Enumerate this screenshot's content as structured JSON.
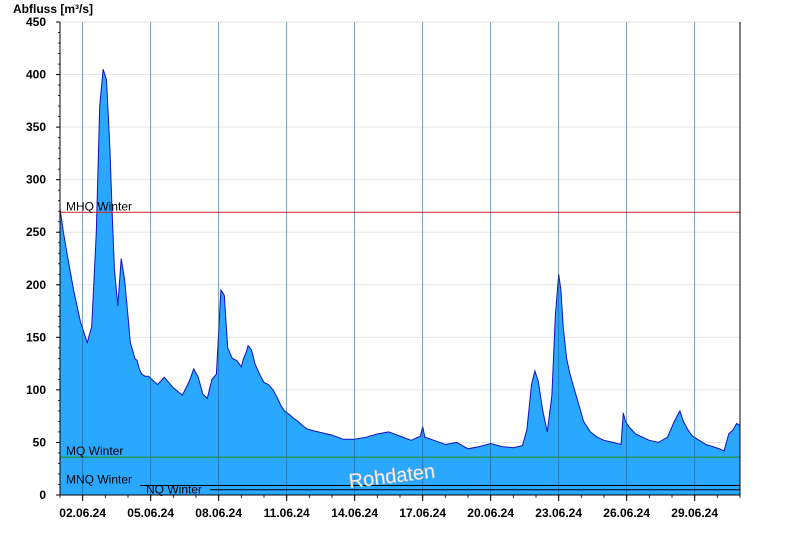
{
  "chart_data": {
    "type": "area",
    "title": "",
    "ylabel": "Abfluss [m³/s]",
    "xlabel": "",
    "ylim": [
      0,
      450
    ],
    "yticks": [
      0,
      50,
      100,
      150,
      200,
      250,
      300,
      350,
      400,
      450
    ],
    "xlim_days": [
      1,
      31
    ],
    "xticks": [
      {
        "day": 2,
        "label": "02.06.24"
      },
      {
        "day": 5,
        "label": "05.06.24"
      },
      {
        "day": 8,
        "label": "08.06.24"
      },
      {
        "day": 11,
        "label": "11.06.24"
      },
      {
        "day": 14,
        "label": "14.06.24"
      },
      {
        "day": 17,
        "label": "17.06.24"
      },
      {
        "day": 20,
        "label": "20.06.24"
      },
      {
        "day": 23,
        "label": "23.06.24"
      },
      {
        "day": 26,
        "label": "26.06.24"
      },
      {
        "day": 29,
        "label": "29.06.24"
      }
    ],
    "grid": true,
    "reference_lines": [
      {
        "name": "MHQ Winter",
        "value": 269,
        "color": "#d42020"
      },
      {
        "name": "MQ Winter",
        "value": 36,
        "color": "#1a8a1a"
      },
      {
        "name": "MNQ Winter",
        "value": 9,
        "color": "#000000"
      },
      {
        "name": "NQ Winter",
        "value": 5,
        "color": "#000000"
      }
    ],
    "watermark": "Rohdaten",
    "series": [
      {
        "fill": "#2aa8ff",
        "line": "#1010c0",
        "x": [
          1.0,
          1.15,
          1.35,
          1.6,
          1.9,
          2.2,
          2.4,
          2.6,
          2.75,
          2.9,
          3.05,
          3.2,
          3.3,
          3.4,
          3.55,
          3.7,
          3.85,
          4.0,
          4.1,
          4.2,
          4.3,
          4.4,
          4.5,
          4.6,
          4.75,
          4.9,
          5.05,
          5.3,
          5.6,
          6.0,
          6.4,
          6.7,
          6.9,
          7.1,
          7.3,
          7.5,
          7.7,
          7.9,
          8.1,
          8.25,
          8.4,
          8.6,
          8.8,
          9.0,
          9.1,
          9.2,
          9.3,
          9.45,
          9.6,
          9.8,
          10.0,
          10.2,
          10.4,
          10.6,
          10.75,
          10.9,
          11.1,
          11.3,
          11.5,
          11.7,
          11.9,
          12.2,
          12.6,
          13.0,
          13.5,
          14.0,
          14.5,
          15.0,
          15.5,
          16.0,
          16.5,
          16.9,
          17.0,
          17.1,
          17.5,
          18.0,
          18.5,
          19.0,
          19.5,
          20.0,
          20.5,
          21.0,
          21.4,
          21.6,
          21.8,
          21.95,
          22.1,
          22.3,
          22.5,
          22.7,
          22.85,
          23.0,
          23.1,
          23.2,
          23.35,
          23.5,
          23.7,
          23.9,
          24.1,
          24.4,
          24.7,
          25.0,
          25.4,
          25.75,
          25.85,
          25.95,
          26.1,
          26.4,
          26.7,
          27.0,
          27.4,
          27.8,
          28.1,
          28.35,
          28.5,
          28.7,
          28.9,
          29.2,
          29.5,
          29.8,
          30.1,
          30.3,
          30.5,
          30.7,
          30.85,
          31.0
        ],
        "y": [
          272,
          250,
          225,
          195,
          165,
          145,
          160,
          250,
          370,
          405,
          395,
          330,
          270,
          215,
          180,
          225,
          205,
          170,
          145,
          138,
          130,
          128,
          120,
          115,
          113,
          113,
          110,
          105,
          112,
          102,
          95,
          108,
          120,
          112,
          96,
          92,
          110,
          115,
          195,
          190,
          140,
          130,
          128,
          122,
          130,
          135,
          142,
          138,
          125,
          115,
          107,
          105,
          100,
          92,
          85,
          80,
          77,
          73,
          70,
          66,
          63,
          61,
          59,
          57,
          53,
          53,
          55,
          58,
          60,
          56,
          52,
          56,
          65,
          55,
          52,
          48,
          50,
          44,
          46,
          49,
          46,
          45,
          47,
          62,
          105,
          118,
          108,
          80,
          60,
          95,
          170,
          210,
          195,
          160,
          130,
          115,
          100,
          85,
          70,
          60,
          55,
          52,
          50,
          48,
          78,
          70,
          65,
          58,
          55,
          52,
          50,
          55,
          70,
          80,
          70,
          62,
          56,
          52,
          48,
          46,
          44,
          42,
          58,
          62,
          68,
          66
        ]
      }
    ]
  }
}
